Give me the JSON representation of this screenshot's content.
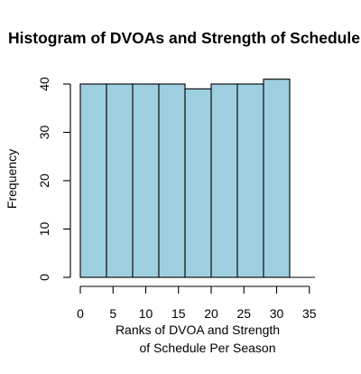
{
  "chart_data": {
    "type": "bar",
    "title": "Histogram of DVOAs and Strength of Schedule",
    "xlabel_lines": [
      "Ranks of DVOA and Strength",
      "of Schedule Per Season"
    ],
    "ylabel": "Frequency",
    "bin_edges": [
      0,
      4,
      8,
      12,
      16,
      20,
      24,
      28,
      32
    ],
    "values": [
      40,
      40,
      40,
      40,
      39,
      40,
      40,
      41
    ],
    "xlim": [
      0,
      35
    ],
    "ylim": [
      0,
      41
    ],
    "x_ticks": [
      "0",
      "5",
      "10",
      "15",
      "20",
      "25",
      "30",
      "35"
    ],
    "y_ticks": [
      "0",
      "10",
      "20",
      "30",
      "40"
    ],
    "grid": false,
    "legend": "none",
    "colors": {
      "bar_fill": "#9ecfe0",
      "bar_stroke": "#000000",
      "axis": "#000000"
    }
  }
}
